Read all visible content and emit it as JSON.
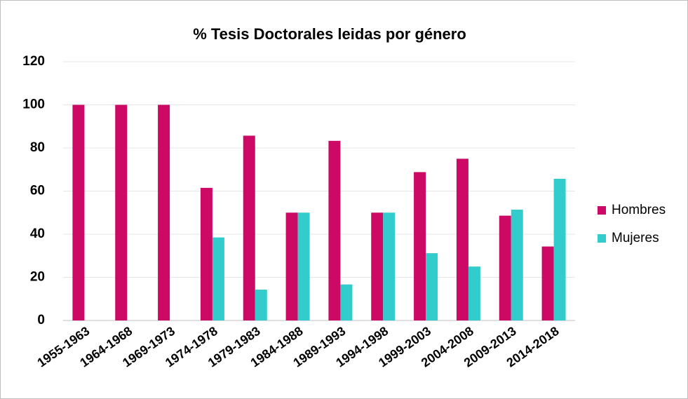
{
  "chart_data": {
    "type": "bar",
    "title": "% Tesis Doctorales leidas por género",
    "categories": [
      "1955-1963",
      "1964-1968",
      "1969-1973",
      "1974-1978",
      "1979-1983",
      "1984-1988",
      "1989-1993",
      "1994-1998",
      "1999-2003",
      "2004-2008",
      "2009-2013",
      "2014-2018"
    ],
    "series": [
      {
        "name": "Hombres",
        "color": "#cc0a66",
        "values": [
          100,
          100,
          100,
          61.5,
          85.7,
          50,
          83.3,
          50,
          68.8,
          75,
          48.6,
          34.3
        ]
      },
      {
        "name": "Mujeres",
        "color": "#33cccc",
        "values": [
          0,
          0,
          0,
          38.5,
          14.3,
          50,
          16.7,
          50,
          31.2,
          25,
          51.4,
          65.7
        ]
      }
    ],
    "ylim": [
      0,
      120
    ],
    "yticks": [
      0,
      20,
      40,
      60,
      80,
      100,
      120
    ],
    "grid": true,
    "legend": "right"
  }
}
